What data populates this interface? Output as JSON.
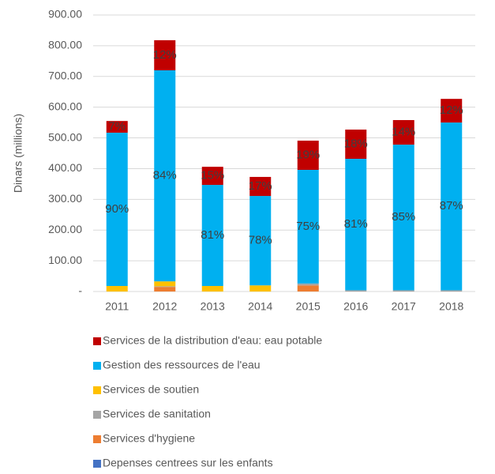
{
  "chart_data": {
    "type": "stacked_bar",
    "y_label": "Dinars (millions)",
    "categories": [
      "2011",
      "2012",
      "2013",
      "2014",
      "2015",
      "2016",
      "2017",
      "2018"
    ],
    "ylim": [
      0,
      900
    ],
    "yticks": [
      {
        "value": 0,
        "label": "-"
      },
      {
        "value": 100,
        "label": "100.00"
      },
      {
        "value": 200,
        "label": "200.00"
      },
      {
        "value": 300,
        "label": "300.00"
      },
      {
        "value": 400,
        "label": "400.00"
      },
      {
        "value": 500,
        "label": "500.00"
      },
      {
        "value": 600,
        "label": "600.00"
      },
      {
        "value": 700,
        "label": "700.00"
      },
      {
        "value": 800,
        "label": "800.00"
      },
      {
        "value": 900,
        "label": "900.00"
      }
    ],
    "grid": true,
    "series": [
      {
        "name": "Depenses centrees sur les enfants",
        "color": "#4472c4",
        "values": [
          0,
          0,
          0,
          0,
          0,
          0,
          0,
          0
        ]
      },
      {
        "name": "Services d'hygiene",
        "color": "#ed7d31",
        "values": [
          0,
          15,
          0,
          0,
          20,
          0,
          0,
          0
        ]
      },
      {
        "name": "Services de sanitation",
        "color": "#a5a5a5",
        "values": [
          0,
          2,
          0,
          0,
          6,
          4,
          4,
          4
        ]
      },
      {
        "name": "Services de soutien",
        "color": "#ffc000",
        "values": [
          18,
          16,
          18,
          20,
          0,
          0,
          0,
          0
        ]
      },
      {
        "name": "Gestion des ressources de l'eau",
        "color": "#00b0f0",
        "values": [
          499,
          687,
          329,
          291,
          370,
          428,
          474,
          546
        ],
        "labels": [
          "90%",
          "84%",
          "81%",
          "78%",
          "75%",
          "81%",
          "85%",
          "87%"
        ]
      },
      {
        "name": "Services de la distribution d'eau: eau potable",
        "color": "#c00000",
        "values": [
          38,
          98,
          59,
          62,
          95,
          95,
          80,
          77
        ],
        "labels": [
          "7%",
          "12%",
          "15%",
          "17%",
          "19%",
          "18%",
          "14%",
          "12%"
        ]
      }
    ]
  }
}
